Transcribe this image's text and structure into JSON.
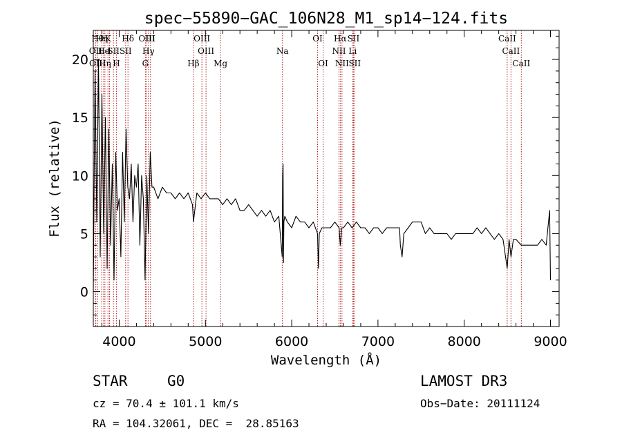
{
  "chart_data": {
    "type": "line",
    "title": "spec−55890−GAC_106N28_M1_sp14−124.fits",
    "xlabel": "Wavelength (Å)",
    "ylabel": "Flux (relative)",
    "xlim": [
      3700,
      9100
    ],
    "ylim": [
      -3,
      22.5
    ],
    "xticks": [
      4000,
      5000,
      6000,
      7000,
      8000,
      9000
    ],
    "yticks": [
      0,
      5,
      10,
      15,
      20
    ],
    "series": [
      {
        "name": "flux",
        "color": "#000000",
        "x": [
          3700,
          3720,
          3740,
          3760,
          3780,
          3800,
          3820,
          3840,
          3860,
          3880,
          3900,
          3920,
          3940,
          3960,
          3980,
          4000,
          4020,
          4040,
          4060,
          4080,
          4100,
          4120,
          4140,
          4160,
          4180,
          4200,
          4220,
          4240,
          4260,
          4280,
          4300,
          4320,
          4340,
          4360,
          4380,
          4400,
          4450,
          4500,
          4550,
          4600,
          4650,
          4700,
          4750,
          4800,
          4850,
          4861,
          4900,
          4950,
          5000,
          5050,
          5100,
          5150,
          5200,
          5250,
          5300,
          5350,
          5400,
          5450,
          5500,
          5550,
          5600,
          5650,
          5700,
          5750,
          5800,
          5850,
          5890,
          5895,
          5900,
          5905,
          5910,
          5920,
          5950,
          6000,
          6050,
          6100,
          6150,
          6200,
          6250,
          6300,
          6310,
          6320,
          6350,
          6400,
          6450,
          6500,
          6550,
          6563,
          6580,
          6600,
          6650,
          6700,
          6750,
          6800,
          6850,
          6900,
          6950,
          7000,
          7050,
          7100,
          7150,
          7200,
          7250,
          7260,
          7280,
          7300,
          7350,
          7400,
          7450,
          7500,
          7550,
          7600,
          7650,
          7700,
          7750,
          7800,
          7850,
          7900,
          7950,
          8000,
          8050,
          8100,
          8150,
          8200,
          8250,
          8300,
          8350,
          8400,
          8450,
          8498,
          8520,
          8542,
          8570,
          8600,
          8662,
          8700,
          8750,
          8800,
          8850,
          8900,
          8950,
          8990,
          9000
        ],
        "y": [
          0,
          19,
          6,
          20,
          3,
          17,
          5,
          15,
          2,
          14,
          4,
          11,
          1,
          12,
          7,
          8,
          3,
          12,
          6,
          14,
          9,
          8,
          11,
          6,
          10,
          9,
          11,
          4,
          10,
          8,
          1,
          10,
          5,
          12,
          9,
          9,
          8,
          9,
          8.5,
          8.5,
          8,
          8.5,
          8,
          8.5,
          7.5,
          6,
          8.5,
          8,
          8.5,
          8,
          8,
          8,
          7.5,
          8,
          7.5,
          8,
          7,
          7,
          7.5,
          7,
          6.5,
          7,
          6.5,
          7,
          6,
          6.5,
          3,
          10,
          11,
          2.5,
          6,
          6.5,
          6,
          5.5,
          6.5,
          6,
          6,
          5.5,
          6,
          5,
          2,
          5,
          5.5,
          5.5,
          5.5,
          6,
          5.5,
          4,
          5.5,
          5.5,
          6,
          5.5,
          6,
          5.5,
          5.5,
          5,
          5.5,
          5.5,
          5,
          5.5,
          5.5,
          5.5,
          5.5,
          4,
          3,
          5,
          5.5,
          6,
          6,
          6,
          5,
          5.5,
          5,
          5,
          5,
          5,
          4.5,
          5,
          5,
          5,
          5,
          5,
          5.5,
          5,
          5.5,
          5,
          4.5,
          5,
          4.5,
          2,
          4.5,
          3,
          4.5,
          4.5,
          4,
          4,
          4,
          4,
          4,
          4.5,
          4,
          7,
          1
        ]
      }
    ],
    "lines": [
      {
        "wave": 3750,
        "row": 0,
        "label": "Hθ"
      },
      {
        "wave": 3727,
        "row": 1,
        "label": "OII"
      },
      {
        "wave": 3729,
        "row": 2,
        "label": "OII"
      },
      {
        "wave": 3798,
        "row": 0,
        "label": "Hη"
      },
      {
        "wave": 3820,
        "row": 1,
        "label": "He"
      },
      {
        "wave": 3835,
        "row": 2,
        "label": "Hη"
      },
      {
        "wave": 3870,
        "row": 0,
        "label": "K"
      },
      {
        "wave": 3888,
        "row": 1,
        "label": "I"
      },
      {
        "wave": 3934,
        "row": 1,
        "label": "SII"
      },
      {
        "wave": 3968,
        "row": 2,
        "label": "H"
      },
      {
        "wave": 4102,
        "row": 0,
        "label": "Hδ"
      },
      {
        "wave": 4075,
        "row": 1,
        "label": "SII"
      },
      {
        "wave": 4320,
        "row": 0,
        "label": "OIII"
      },
      {
        "wave": 4340,
        "row": 1,
        "label": "Hγ"
      },
      {
        "wave": 4304,
        "row": 2,
        "label": "G"
      },
      {
        "wave": 4363,
        "row": 0,
        "label": "III"
      },
      {
        "wave": 4861,
        "row": 2,
        "label": "Hβ"
      },
      {
        "wave": 4959,
        "row": 0,
        "label": "OIII"
      },
      {
        "wave": 5007,
        "row": 1,
        "label": "OIII"
      },
      {
        "wave": 5175,
        "row": 2,
        "label": "Mg"
      },
      {
        "wave": 5893,
        "row": 1,
        "label": "Na"
      },
      {
        "wave": 6300,
        "row": 0,
        "label": "OI"
      },
      {
        "wave": 6364,
        "row": 2,
        "label": "OI"
      },
      {
        "wave": 6548,
        "row": 1,
        "label": "NII"
      },
      {
        "wave": 6563,
        "row": 0,
        "label": "Hα"
      },
      {
        "wave": 6583,
        "row": 2,
        "label": "NII"
      },
      {
        "wave": 6707,
        "row": 1,
        "label": "Li"
      },
      {
        "wave": 6716,
        "row": 0,
        "label": "SII"
      },
      {
        "wave": 6731,
        "row": 2,
        "label": "SII"
      },
      {
        "wave": 8498,
        "row": 0,
        "label": "CaII"
      },
      {
        "wave": 8542,
        "row": 1,
        "label": "CaII"
      },
      {
        "wave": 8662,
        "row": 2,
        "label": "CaII"
      }
    ]
  },
  "info": {
    "class": "STAR",
    "subclass": "G0",
    "survey": "LAMOST DR3",
    "cz": "cz = 70.4 ± 101.1 km/s",
    "obs_date": "Obs−Date: 20111124",
    "coords": "RA = 104.32061, DEC =  28.85163"
  }
}
